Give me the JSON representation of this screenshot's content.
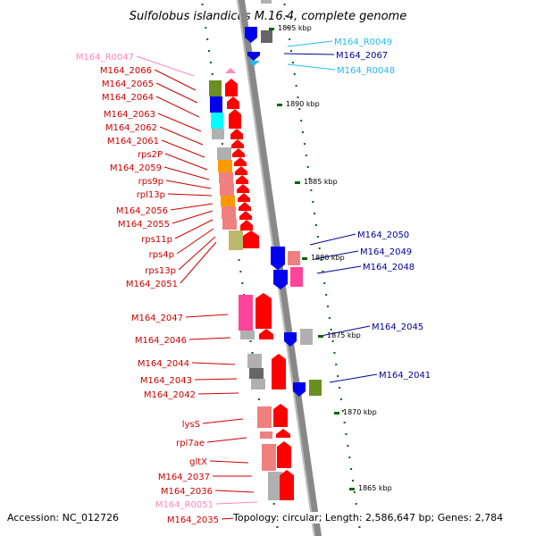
{
  "title": "Sulfolobus islandicus M.16.4, complete genome",
  "footer": {
    "accession": "Accession: NC_012726",
    "topology": "Topology: circular; Length: 2,586,647 bp; Genes: 2,784"
  },
  "scale_labels": [
    "1895 kbp",
    "1890 kbp",
    "1885 kbp",
    "1880 kbp",
    "1875 kbp",
    "1870 kbp",
    "1865 kbp"
  ],
  "left_labels": [
    {
      "name": "M164_R0047",
      "type": "rna"
    },
    {
      "name": "M164_2066",
      "type": "cds"
    },
    {
      "name": "M164_2065",
      "type": "cds"
    },
    {
      "name": "M164_2064",
      "type": "cds"
    },
    {
      "name": "M164_2063",
      "type": "cds"
    },
    {
      "name": "M164_2062",
      "type": "cds"
    },
    {
      "name": "M164_2061",
      "type": "cds"
    },
    {
      "name": "rps2P",
      "type": "cds"
    },
    {
      "name": "M164_2059",
      "type": "cds"
    },
    {
      "name": "rps9p",
      "type": "cds"
    },
    {
      "name": "rpl13p",
      "type": "cds"
    },
    {
      "name": "M164_2056",
      "type": "cds"
    },
    {
      "name": "M164_2055",
      "type": "cds"
    },
    {
      "name": "rps11p",
      "type": "cds"
    },
    {
      "name": "rps4p",
      "type": "cds"
    },
    {
      "name": "rps13p",
      "type": "cds"
    },
    {
      "name": "M164_2051",
      "type": "cds"
    },
    {
      "name": "M164_2047",
      "type": "cds"
    },
    {
      "name": "M164_2046",
      "type": "cds"
    },
    {
      "name": "M164_2044",
      "type": "cds"
    },
    {
      "name": "M164_2043",
      "type": "cds"
    },
    {
      "name": "M164_2042",
      "type": "cds"
    },
    {
      "name": "lysS",
      "type": "cds"
    },
    {
      "name": "rpl7ae",
      "type": "cds"
    },
    {
      "name": "gltX",
      "type": "cds"
    },
    {
      "name": "M164_2037",
      "type": "cds"
    },
    {
      "name": "M164_2036",
      "type": "cds"
    },
    {
      "name": "M164_R0051",
      "type": "rna"
    },
    {
      "name": "M164_2035",
      "type": "cds"
    }
  ],
  "right_labels": [
    {
      "name": "M164_R0049",
      "type": "rna"
    },
    {
      "name": "M164_2067",
      "type": "cds"
    },
    {
      "name": "M164_R0048",
      "type": "rna"
    },
    {
      "name": "M164_2050",
      "type": "cds"
    },
    {
      "name": "M164_2049",
      "type": "cds"
    },
    {
      "name": "M164_2048",
      "type": "cds"
    },
    {
      "name": "M164_2045",
      "type": "cds"
    },
    {
      "name": "M164_2041",
      "type": "cds"
    }
  ],
  "colors": {
    "forward_gene": "#ff0000",
    "reverse_gene": "#0000ee",
    "forward_label": "#cc0000",
    "reverse_label": "#000099",
    "rna_forward": "#ff88bb",
    "rna_reverse": "#22bbee",
    "backbone": "#888888",
    "tick": "#006600",
    "cog_pink": "#ff4499",
    "cog_salmon": "#f08080",
    "cog_olive": "#6b8e23",
    "cog_khaki": "#bdb76b",
    "cog_orange": "#ff9900",
    "cog_cyan": "#00ffff",
    "cog_grey": "#b0b0b0",
    "cog_dark": "#666666"
  }
}
